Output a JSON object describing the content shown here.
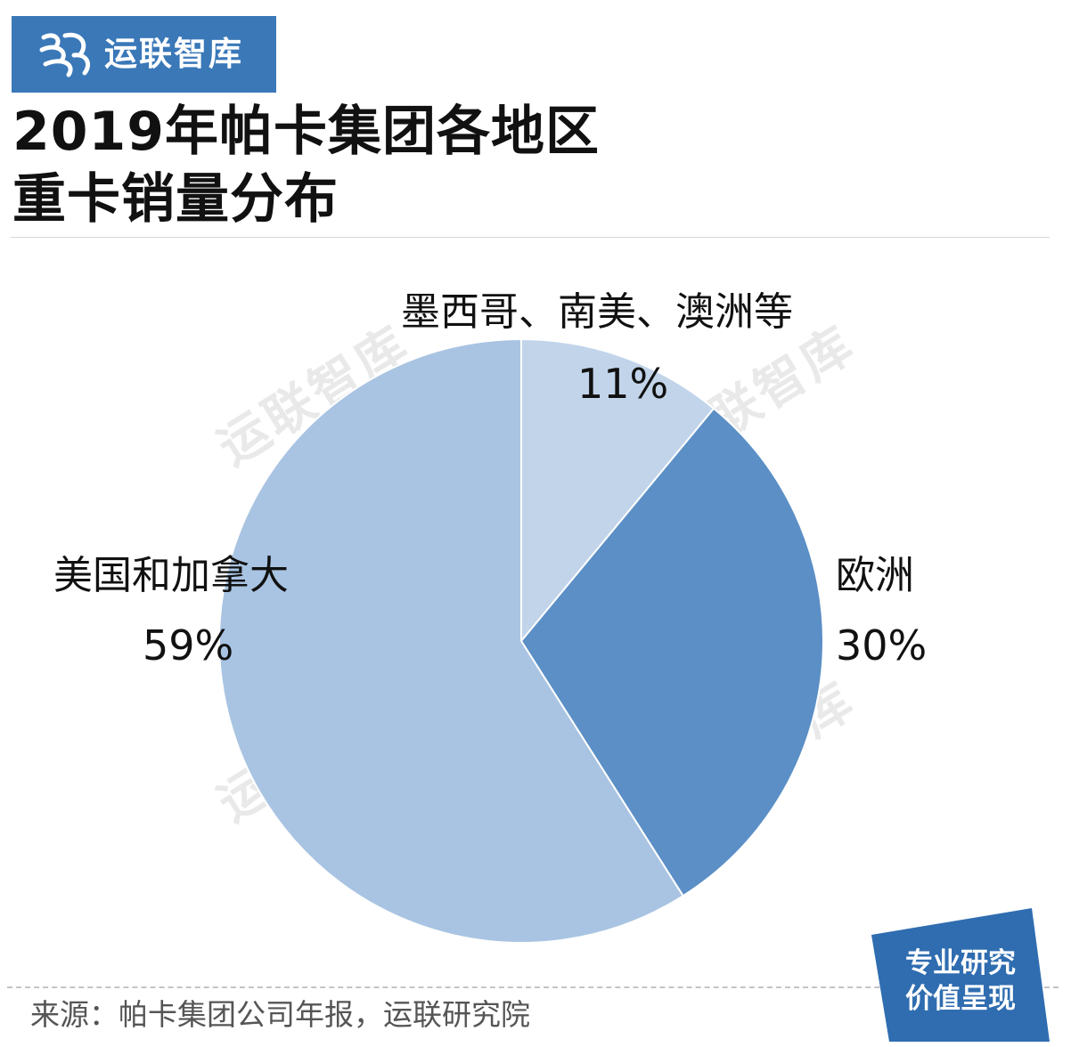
{
  "brand": {
    "name": "运联智库",
    "icon": "wave-logo-icon",
    "color": "#3a78b8"
  },
  "title": {
    "line1": "2019年帕卡集团各地区",
    "line2": "重卡销量分布"
  },
  "chart_data": {
    "type": "pie",
    "title": "2019年帕卡集团各地区重卡销量分布",
    "slices": [
      {
        "label": "墨西哥、南美、澳洲等",
        "value": 11,
        "display": "11%",
        "color": "#c1d4ea"
      },
      {
        "label": "欧洲",
        "value": 30,
        "display": "30%",
        "color": "#5b8fc6"
      },
      {
        "label": "美国和加拿大",
        "value": 59,
        "display": "59%",
        "color": "#a9c4e2"
      }
    ],
    "start_angle_deg": 0,
    "direction": "clockwise"
  },
  "watermark": "运联智库",
  "source": "来源：帕卡集团公司年报，运联研究院",
  "badge": {
    "line1": "专业研究",
    "line2": "价值呈现",
    "color": "#2f6db0"
  }
}
